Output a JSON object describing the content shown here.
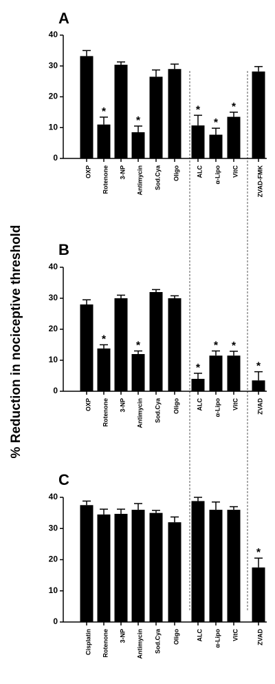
{
  "figure": {
    "ylabel": "% Reduction in nociceptive threshold"
  },
  "chart_data": [
    {
      "type": "bar",
      "panel": "A",
      "ylim": [
        0,
        40
      ],
      "yticks": [
        0,
        10,
        20,
        30,
        40
      ],
      "categories": [
        "OXP",
        "Rotenone",
        "3-NP",
        "Antimycin",
        "Sod.Cya",
        "Oligo",
        "ALC",
        "α-Lipo",
        "VitC",
        "ZVAD-FMK"
      ],
      "values": [
        33.2,
        11.0,
        30.4,
        8.5,
        26.5,
        29.0,
        10.7,
        7.7,
        13.5,
        28.2
      ],
      "errors": [
        1.8,
        2.4,
        0.9,
        2.0,
        2.2,
        1.6,
        3.3,
        2.1,
        1.5,
        1.6
      ],
      "significant": [
        false,
        true,
        false,
        true,
        false,
        false,
        true,
        true,
        true,
        false
      ],
      "marker": "*"
    },
    {
      "type": "bar",
      "panel": "B",
      "ylim": [
        0,
        40
      ],
      "yticks": [
        0,
        10,
        20,
        30,
        40
      ],
      "categories": [
        "OXP",
        "Rotenone",
        "3-NP",
        "Antimycin",
        "Sod.Cya",
        "Oligo",
        "ALC",
        "α-Lipo",
        "VitC",
        "ZVAD"
      ],
      "values": [
        28.0,
        13.8,
        30.0,
        12.0,
        32.0,
        30.0,
        4.0,
        11.5,
        11.5,
        3.5
      ],
      "errors": [
        1.5,
        1.2,
        1.0,
        1.0,
        0.8,
        0.8,
        1.8,
        1.5,
        1.4,
        2.8
      ],
      "significant": [
        false,
        true,
        false,
        true,
        false,
        false,
        true,
        true,
        true,
        true
      ],
      "marker": "*"
    },
    {
      "type": "bar",
      "panel": "C",
      "ylim": [
        0,
        40
      ],
      "yticks": [
        0,
        10,
        20,
        30,
        40
      ],
      "categories": [
        "Cisplatin",
        "Rotenone",
        "3-NP",
        "Antimycin",
        "Sod.Cya",
        "Oligo",
        "ALC",
        "α-Lipo",
        "VitC",
        "ZVAD"
      ],
      "values": [
        37.5,
        34.5,
        34.7,
        36.0,
        35.0,
        32.0,
        38.8,
        36.0,
        36.0,
        17.5
      ],
      "errors": [
        1.3,
        1.7,
        1.5,
        2.0,
        0.8,
        1.7,
        1.2,
        2.5,
        1.0,
        3.0
      ],
      "significant": [
        false,
        false,
        false,
        false,
        false,
        false,
        false,
        false,
        false,
        true
      ],
      "marker": "*"
    }
  ]
}
